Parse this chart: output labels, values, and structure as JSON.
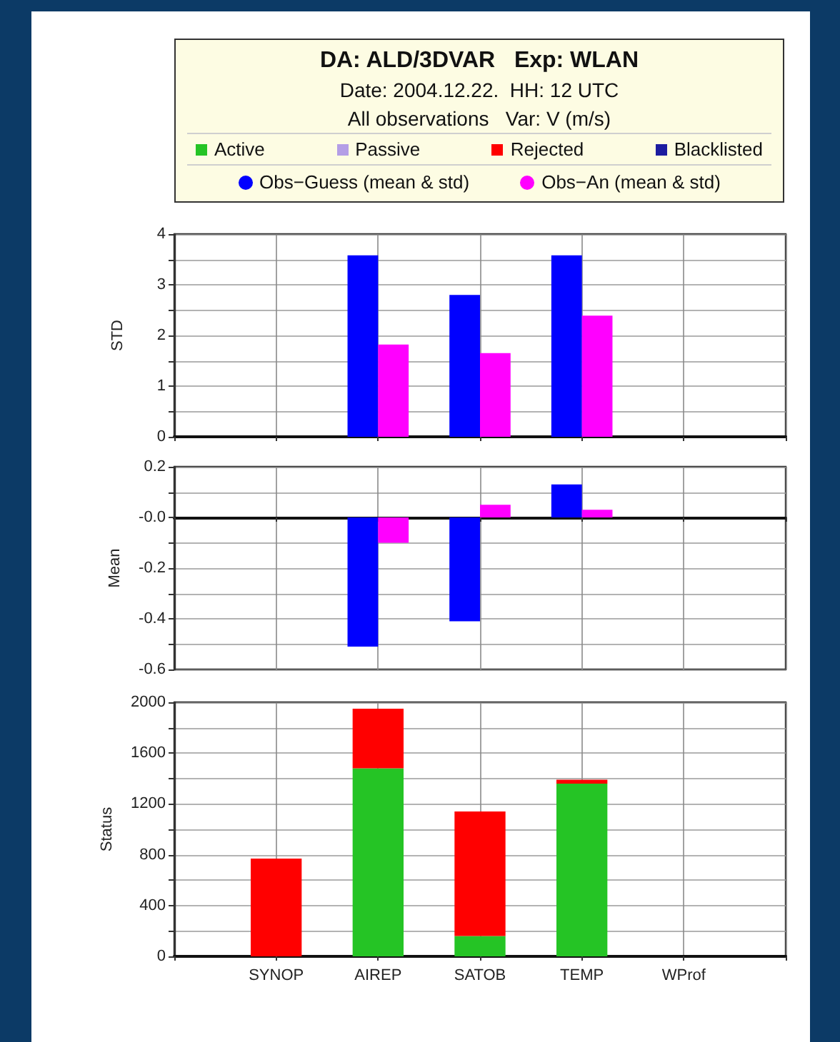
{
  "chart_data": [
    {
      "type": "bar",
      "title": "DA: ALD/3DVAR   Exp: WLAN",
      "subtitle": "Date: 2004.12.22.  HH: 12 UTC\nAll observations   Var: V (m/s)",
      "ylabel": "STD",
      "categories": [
        null,
        null,
        null,
        null,
        null
      ],
      "series": [
        {
          "name": "Obs−Guess (mean & std)",
          "color": "#0000ff",
          "values": [
            null,
            3.58,
            2.8,
            3.58,
            null
          ]
        },
        {
          "name": "Obs−An (mean & std)",
          "color": "#ff00ff",
          "values": [
            null,
            1.82,
            1.65,
            2.39,
            null
          ]
        }
      ],
      "ylim": [
        0,
        4
      ],
      "yticks": [
        0,
        {
          "value": 0.5,
          "label": null
        },
        1,
        {
          "value": 1.5,
          "label": null
        },
        2,
        {
          "value": 2.5,
          "label": null
        },
        3,
        {
          "value": 3.5,
          "label": null
        },
        4
      ],
      "grid": true,
      "legend": "top",
      "tick_labels": "y"
    },
    {
      "type": "bar",
      "ylabel": "Mean",
      "categories": [
        null,
        null,
        null,
        null,
        null
      ],
      "series": [
        {
          "name": "Obs−Guess (mean & std)",
          "color": "#0000ff",
          "values": [
            null,
            -0.51,
            -0.41,
            0.13,
            null
          ]
        },
        {
          "name": "Obs−An (mean & std)",
          "color": "#ff00ff",
          "values": [
            null,
            -0.1,
            0.05,
            0.03,
            null
          ]
        }
      ],
      "ylim": [
        -0.6,
        0.2
      ],
      "yticks": [
        -0.6,
        {
          "value": -0.5,
          "label": null
        },
        -0.4,
        {
          "value": -0.3,
          "label": null
        },
        -0.2,
        {
          "value": -0.1,
          "label": null
        },
        {
          "value": 0,
          "label": "-0.0"
        },
        {
          "value": 0.1,
          "label": null
        },
        0.2
      ],
      "grid": true,
      "legend": "top",
      "tick_labels": "y"
    },
    {
      "type": "bar",
      "ylabel": "Status",
      "categories": [
        "SYNOP",
        "AIREP",
        "SATOB",
        "TEMP",
        "WProf"
      ],
      "stacked": true,
      "series": [
        {
          "name": "Active",
          "color": "#25c425",
          "values": [
            null,
            1480,
            160,
            1360,
            null
          ]
        },
        {
          "name": "Passive",
          "color": "#b49ee6",
          "values": [
            null,
            null,
            null,
            null,
            null
          ]
        },
        {
          "name": "Rejected",
          "color": "#ff0000",
          "values": [
            770,
            470,
            980,
            30,
            null
          ]
        },
        {
          "name": "Blacklisted",
          "color": "#1c1ca0",
          "values": [
            null,
            null,
            null,
            null,
            null
          ]
        }
      ],
      "ylim": [
        0,
        2000
      ],
      "yticks": [
        0,
        {
          "value": 200,
          "label": null
        },
        400,
        {
          "value": 600,
          "label": null
        },
        800,
        {
          "value": 1000,
          "label": null
        },
        1200,
        {
          "value": 1400,
          "label": null
        },
        1600,
        {
          "value": 1800,
          "label": null
        },
        2000
      ],
      "grid": true,
      "legend": "top"
    }
  ]
}
